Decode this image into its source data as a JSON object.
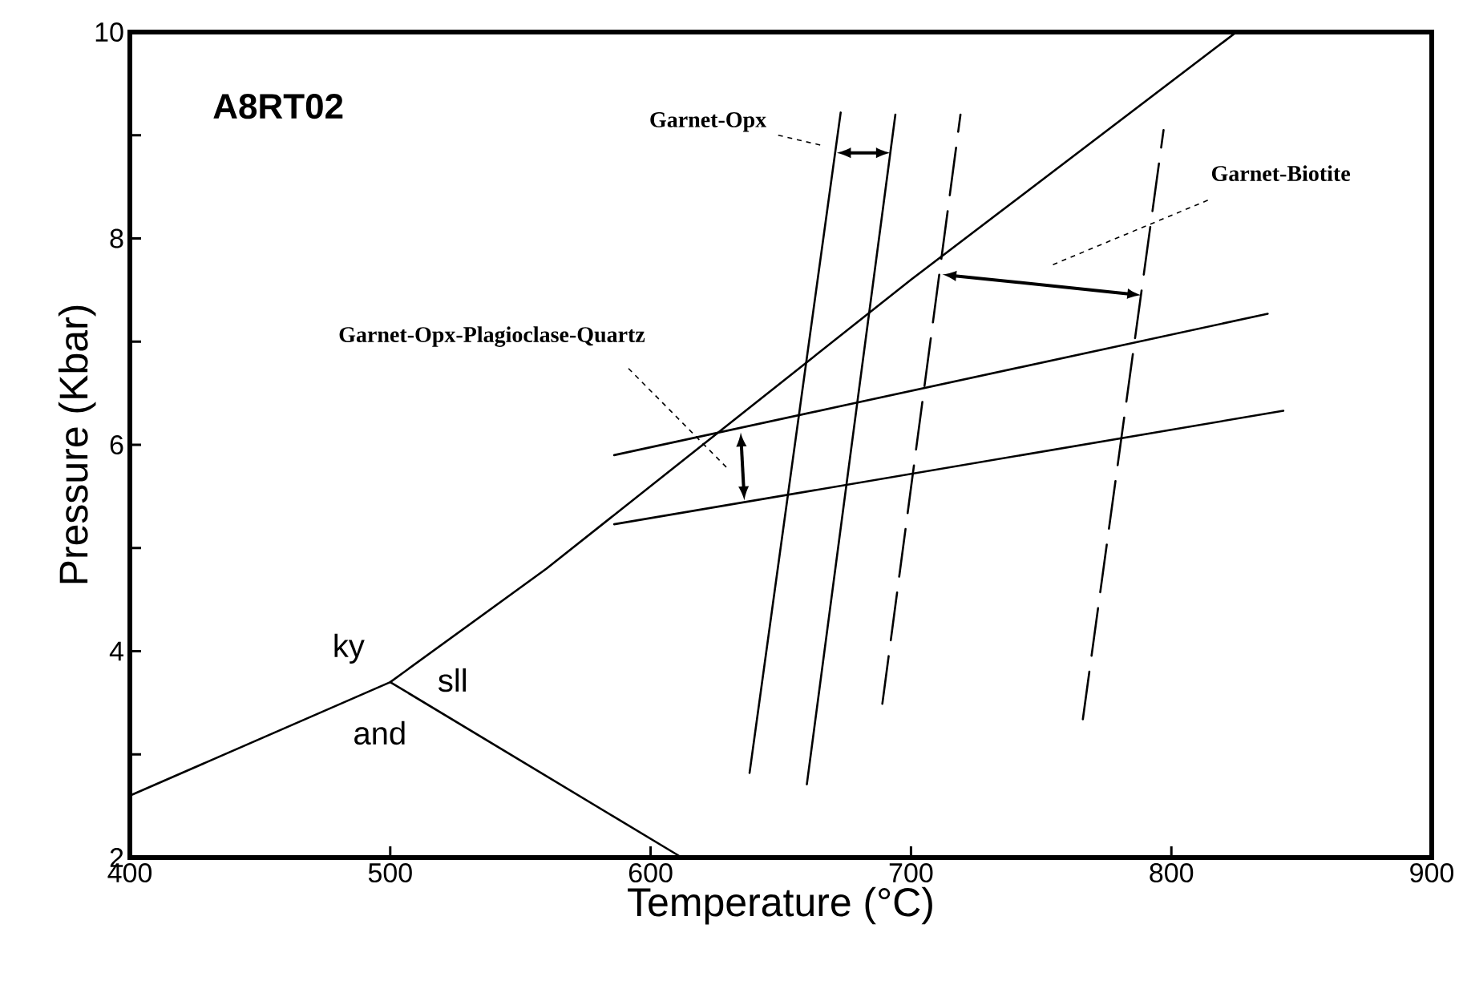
{
  "chart_data": {
    "type": "line",
    "title": "A8RT02",
    "xlabel": "Temperature (°C)",
    "ylabel": "Pressure (Kbar)",
    "xlim": [
      400,
      900
    ],
    "ylim": [
      2,
      10
    ],
    "xticks": [
      400,
      500,
      600,
      700,
      800,
      900
    ],
    "yticks": [
      2,
      {
        "value": 3,
        "label": null
      },
      4,
      {
        "value": 5,
        "label": null
      },
      6,
      {
        "value": 7,
        "label": null
      },
      8,
      {
        "value": 9,
        "label": null
      },
      10
    ],
    "marker": "none",
    "series": [
      {
        "color": "#000000",
        "line_style": "solid",
        "x": [
          400,
          500,
          560,
          630,
          700,
          825
        ],
        "values": [
          2.6,
          3.7,
          4.8,
          6.2,
          7.6,
          10
        ]
      },
      {
        "color": "#000000",
        "line_style": "solid",
        "x": [
          500,
          612
        ],
        "values": [
          3.7,
          2
        ]
      },
      {
        "color": "#000000",
        "line_style": "solid",
        "x": [
          586,
          837
        ],
        "values": [
          5.9,
          7.27
        ]
      },
      {
        "color": "#000000",
        "line_style": "solid",
        "x": [
          586,
          843
        ],
        "values": [
          5.23,
          6.33
        ]
      },
      {
        "color": "#000000",
        "line_style": "solid",
        "x": [
          638,
          673
        ],
        "values": [
          2.82,
          9.22
        ]
      },
      {
        "color": "#000000",
        "line_style": "solid",
        "x": [
          660,
          694
        ],
        "values": [
          2.71,
          9.2
        ]
      },
      {
        "color": "#000000",
        "line_style": "dashed",
        "x": [
          689,
          719
        ],
        "values": [
          3.49,
          9.2
        ]
      },
      {
        "color": "#000000",
        "line_style": "dashed",
        "x": [
          766,
          797
        ],
        "values": [
          3.34,
          9.05
        ]
      }
    ],
    "annotations": [
      "Garnet-Opx",
      "Garnet-Biotite",
      "Garnet-Opx-Plagioclase-Quartz",
      "ky",
      "sll",
      "and"
    ]
  }
}
